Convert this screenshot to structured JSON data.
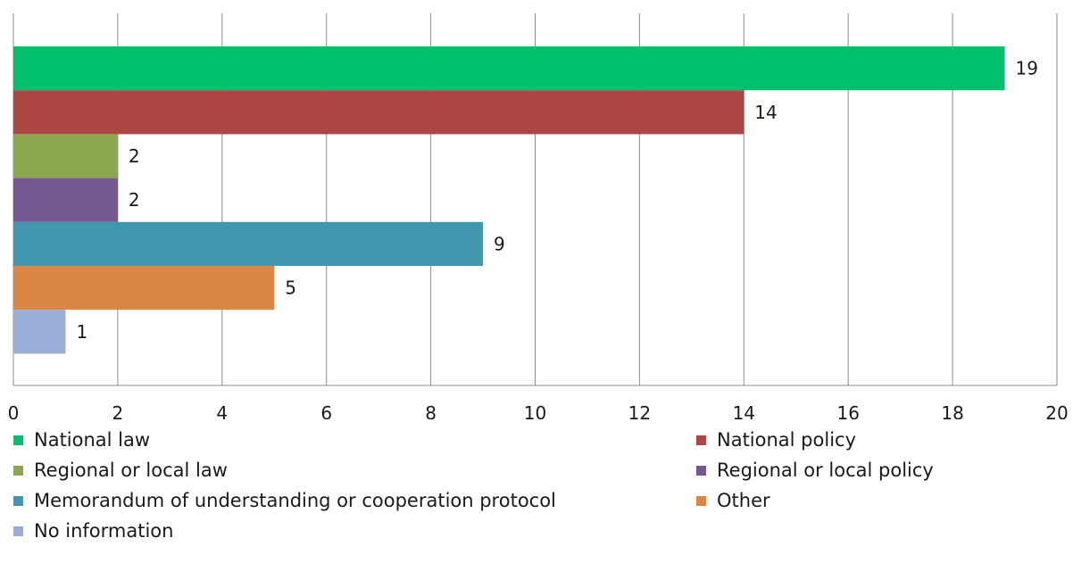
{
  "chart_data": {
    "type": "bar",
    "orientation": "horizontal",
    "series": [
      {
        "name": "National law",
        "value": 19,
        "color": "#00c06b"
      },
      {
        "name": "National policy",
        "value": 14,
        "color": "#ad4746"
      },
      {
        "name": "Regional or local law",
        "value": 2,
        "color": "#8ca84f"
      },
      {
        "name": "Regional or local policy",
        "value": 2,
        "color": "#74578f"
      },
      {
        "name": "Memorandum of understanding or cooperation protocol",
        "value": 9,
        "color": "#4097ae"
      },
      {
        "name": "Other",
        "value": 5,
        "color": "#dc8643"
      },
      {
        "name": "No information",
        "value": 1,
        "color": "#98aed6"
      }
    ],
    "xlim": [
      0,
      20
    ],
    "xticks": [
      "0",
      "2",
      "4",
      "6",
      "8",
      "10",
      "12",
      "14",
      "16",
      "18",
      "20"
    ],
    "grid": true,
    "legend": "bottom",
    "title": "",
    "xlabel": "",
    "ylabel": ""
  }
}
